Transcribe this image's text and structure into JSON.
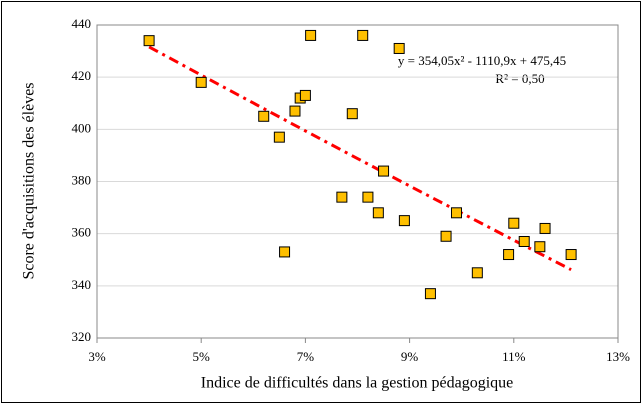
{
  "chart_data": {
    "type": "scatter",
    "x_label": "Indice de difficultés  dans la gestion  pédagogique",
    "y_label": "Score d'acquisitions  des élèves",
    "annotations": [
      "y = 354,05x² - 1110,9x + 475,45",
      "R² = 0,50"
    ],
    "xlim": [
      3,
      13
    ],
    "xticks": [
      {
        "value": 3,
        "label": "3%"
      },
      {
        "value": 5,
        "label": "5%"
      },
      {
        "value": 7,
        "label": "7%"
      },
      {
        "value": 9,
        "label": "9%"
      },
      {
        "value": 11,
        "label": "11%"
      },
      {
        "value": 13,
        "label": "13%"
      }
    ],
    "ylim": [
      320,
      440
    ],
    "yticks": [
      320,
      340,
      360,
      380,
      400,
      420,
      440
    ],
    "grid": true,
    "series": [
      {
        "color": "#ffc000",
        "x": [
          4.0,
          5.0,
          6.2,
          6.5,
          6.6,
          6.8,
          6.9,
          7.0,
          7.1,
          7.7,
          7.9,
          8.1,
          8.2,
          8.4,
          8.5,
          8.8,
          8.9,
          9.4,
          9.7,
          9.9,
          10.3,
          10.9,
          11.0,
          11.2,
          11.5,
          11.6,
          12.1
        ],
        "values": [
          434,
          418,
          405,
          397,
          353,
          407,
          412,
          413,
          436,
          374,
          406,
          436,
          374,
          368,
          384,
          431,
          365,
          337,
          359,
          368,
          345,
          352,
          364,
          357,
          355,
          362,
          352
        ]
      }
    ],
    "trendline": {
      "color": "#ff0000",
      "x": [
        4,
        5,
        6,
        7,
        8,
        9,
        10,
        11,
        12.1
      ],
      "values": [
        431.6,
        420.8,
        410.1,
        399.4,
        388.8,
        378.3,
        367.9,
        357.5,
        346.2
      ]
    }
  }
}
